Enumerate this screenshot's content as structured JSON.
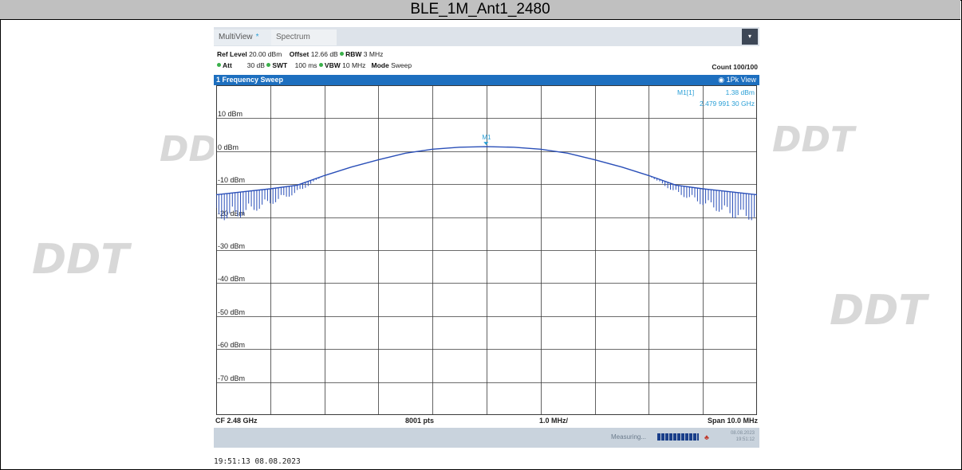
{
  "title": "BLE_1M_Ant1_2480",
  "watermark": "DDT",
  "tabs": [
    {
      "label": "MultiView",
      "star": "*"
    },
    {
      "label": "Spectrum"
    }
  ],
  "params": {
    "row1": {
      "ref_level_label": "Ref Level",
      "ref_level": "20.00 dBm",
      "offset_label": "Offset",
      "offset": "12.66 dB",
      "rbw_label": "RBW",
      "rbw": "3 MHz"
    },
    "row2": {
      "att_label": "Att",
      "att": "30 dB",
      "swt_label": "SWT",
      "swt": "100 ms",
      "vbw_label": "VBW",
      "vbw": "10 MHz",
      "mode_label": "Mode",
      "mode": "Sweep"
    },
    "count": "Count 100/100"
  },
  "trace_header": {
    "left": "1 Frequency Sweep",
    "right": "1Pk View"
  },
  "marker": {
    "name": "M1[1]",
    "level": "1.38 dBm",
    "freq": "2.479 991 30 GHz",
    "label": "M1"
  },
  "footer": {
    "cf": "CF 2.48 GHz",
    "pts": "8001 pts",
    "div": "1.0 MHz/",
    "span": "Span 10.0 MHz"
  },
  "status": {
    "measuring": "Measuring...",
    "date": "08.08.2023",
    "time": "19:51:12"
  },
  "timestamp": "19:51:13  08.08.2023",
  "chart_data": {
    "type": "line",
    "ylabels": [
      "10 dBm",
      "0 dBm",
      "-10 dBm",
      "-20 dBm",
      "-30 dBm",
      "-40 dBm",
      "-50 dBm",
      "-60 dBm",
      "-70 dBm"
    ],
    "ylim": [
      -80,
      20
    ],
    "xlim_mhz": [
      2475.0,
      2485.0
    ],
    "x_divisions": 10,
    "series": [
      {
        "x": [
          2475.0,
          2475.5,
          2476.0,
          2476.5,
          2477.0,
          2477.5,
          2478.0,
          2478.5,
          2479.0,
          2479.5,
          2479.99,
          2480.5,
          2481.0,
          2481.5,
          2482.0,
          2482.5,
          2483.0,
          2483.5,
          2484.0,
          2484.5,
          2485.0
        ],
        "y": [
          -13.2,
          -12.3,
          -11.4,
          -10.3,
          -7.4,
          -4.8,
          -2.6,
          -0.6,
          0.6,
          1.2,
          1.38,
          1.2,
          0.6,
          -0.6,
          -2.6,
          -4.8,
          -7.4,
          -10.3,
          -11.4,
          -12.3,
          -13.2
        ]
      }
    ],
    "colors": {
      "trace": "#2a4fb8",
      "grid": "#3a3a3a",
      "marker": "#2a9fd6"
    }
  }
}
